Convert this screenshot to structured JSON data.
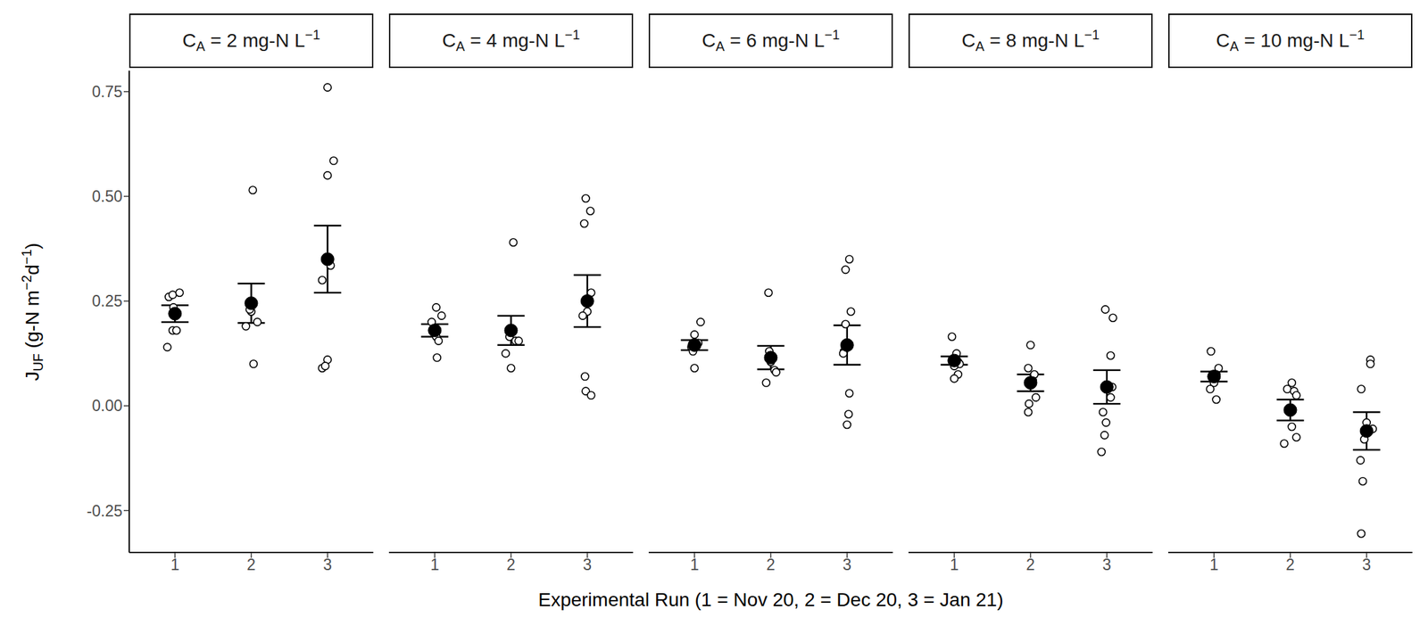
{
  "chart_data": {
    "type": "scatter",
    "x_label": "Experimental Run (1 = Nov 20, 2 = Dec 20, 3 = Jan 21)",
    "y_label": "JUF (g-N m−2d−1)",
    "xlim": [
      0.4,
      3.6
    ],
    "xticks": [
      1,
      2,
      3
    ],
    "ylim": [
      -0.35,
      0.8
    ],
    "yticks": [
      -0.25,
      {
        "value": 0,
        "label": "0.00"
      },
      0.25,
      {
        "value": 0.5,
        "label": "0.50"
      },
      0.75
    ],
    "color": "#000000",
    "facets": [
      {
        "title": "CA = 2 mg-N L−1",
        "points": {
          "marker": "circle_open",
          "x": [
            0.92,
            0.97,
            1.06,
            0.98,
            1.0,
            0.97,
            1.02,
            0.9,
            2.02,
            1.93,
            2.0,
            2.08,
            2.03,
            1.98,
            3.0,
            3.08,
            3.0,
            3.04,
            2.93,
            3.0,
            2.93,
            2.97
          ],
          "y": [
            0.26,
            0.265,
            0.27,
            0.235,
            0.22,
            0.18,
            0.18,
            0.14,
            0.515,
            0.19,
            0.225,
            0.2,
            0.1,
            0.23,
            0.76,
            0.585,
            0.55,
            0.335,
            0.3,
            0.11,
            0.09,
            0.095
          ]
        },
        "means": {
          "marker": "circle_filled",
          "x": [
            1,
            2,
            3
          ],
          "y": [
            0.22,
            0.245,
            0.35
          ],
          "error": [
            0.02,
            0.047,
            0.08
          ]
        }
      },
      {
        "title": "CA = 4 mg-N L−1",
        "points": {
          "marker": "circle_open",
          "x": [
            1.02,
            1.09,
            0.96,
            1.0,
            1.02,
            1.05,
            1.03,
            2.03,
            1.98,
            2.06,
            2.1,
            1.93,
            2.0,
            2.98,
            3.04,
            2.96,
            3.05,
            3.0,
            2.94,
            2.97,
            2.98,
            3.05
          ],
          "y": [
            0.235,
            0.215,
            0.2,
            0.185,
            0.165,
            0.155,
            0.115,
            0.39,
            0.165,
            0.155,
            0.155,
            0.125,
            0.09,
            0.495,
            0.465,
            0.435,
            0.27,
            0.225,
            0.215,
            0.07,
            0.035,
            0.025
          ]
        },
        "means": {
          "marker": "circle_filled",
          "x": [
            1,
            2,
            3
          ],
          "y": [
            0.18,
            0.18,
            0.25
          ],
          "error": [
            0.015,
            0.035,
            0.062
          ]
        }
      },
      {
        "title": "CA = 6 mg-N L−1",
        "points": {
          "marker": "circle_open",
          "x": [
            1.08,
            1.0,
            1.05,
            0.96,
            0.98,
            1.0,
            1.97,
            1.98,
            2.0,
            2.05,
            2.07,
            1.94,
            3.03,
            2.98,
            3.05,
            2.98,
            2.96,
            2.95,
            3.03,
            3.02,
            3.0
          ],
          "y": [
            0.2,
            0.17,
            0.15,
            0.14,
            0.13,
            0.09,
            0.27,
            0.13,
            0.105,
            0.085,
            0.08,
            0.055,
            0.35,
            0.325,
            0.225,
            0.195,
            0.13,
            0.125,
            0.03,
            -0.02,
            -0.045
          ]
        },
        "means": {
          "marker": "circle_filled",
          "x": [
            1,
            2,
            3
          ],
          "y": [
            0.145,
            0.115,
            0.145
          ],
          "error": [
            0.012,
            0.028,
            0.047
          ]
        }
      },
      {
        "title": "CA = 8 mg-N L−1",
        "points": {
          "marker": "circle_open",
          "x": [
            0.97,
            1.03,
            1.05,
            1.07,
            1.0,
            1.05,
            1.0,
            2.0,
            1.97,
            2.05,
            2.03,
            2.07,
            1.98,
            1.97,
            2.98,
            3.08,
            3.05,
            3.07,
            3.05,
            2.95,
            2.99,
            2.97,
            2.93
          ],
          "y": [
            0.165,
            0.125,
            0.105,
            0.1,
            0.095,
            0.075,
            0.065,
            0.145,
            0.09,
            0.075,
            0.06,
            0.02,
            0.005,
            -0.015,
            0.23,
            0.21,
            0.12,
            0.045,
            0.02,
            -0.015,
            -0.04,
            -0.07,
            -0.11
          ]
        },
        "means": {
          "marker": "circle_filled",
          "x": [
            1,
            2,
            3
          ],
          "y": [
            0.108,
            0.055,
            0.045
          ],
          "error": [
            0.01,
            0.02,
            0.04
          ]
        }
      },
      {
        "title": "CA = 10 mg-N L−1",
        "points": {
          "marker": "circle_open",
          "x": [
            0.96,
            1.06,
            1.03,
            1.0,
            0.95,
            1.03,
            2.02,
            1.96,
            2.05,
            2.08,
            2.02,
            2.08,
            1.92,
            3.05,
            3.05,
            2.93,
            3.0,
            3.08,
            2.97,
            2.92,
            2.95,
            2.93
          ],
          "y": [
            0.13,
            0.09,
            0.075,
            0.055,
            0.04,
            0.015,
            0.055,
            0.04,
            0.035,
            0.025,
            -0.05,
            -0.075,
            -0.09,
            0.11,
            0.1,
            0.04,
            -0.04,
            -0.055,
            -0.08,
            -0.13,
            -0.18,
            -0.305
          ]
        },
        "means": {
          "marker": "circle_filled",
          "x": [
            1,
            2,
            3
          ],
          "y": [
            0.07,
            -0.01,
            -0.06
          ],
          "error": [
            0.012,
            0.025,
            0.045
          ]
        }
      }
    ]
  }
}
